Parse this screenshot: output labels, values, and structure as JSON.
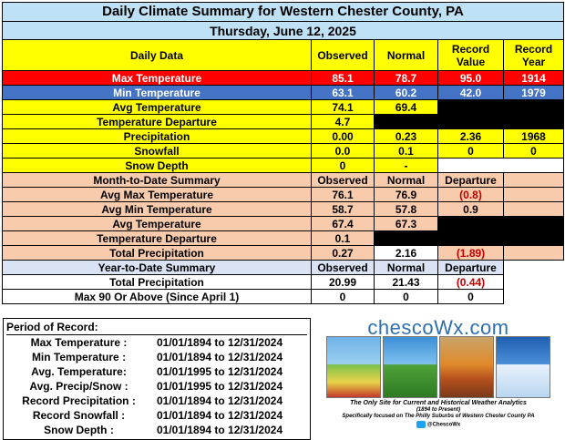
{
  "title": "Daily Climate Summary for Western Chester County, PA",
  "date": "Thursday, June 12, 2025",
  "daily": {
    "headers": [
      "Daily Data",
      "Observed",
      "Normal",
      "Record Value",
      "Record Year"
    ],
    "rows": [
      {
        "label": "Max Temperature",
        "observed": "85.1",
        "normal": "78.7",
        "record_value": "95.0",
        "record_year": "1914"
      },
      {
        "label": "Min Temperature",
        "observed": "63.1",
        "normal": "60.2",
        "record_value": "42.0",
        "record_year": "1979"
      },
      {
        "label": "Avg Temperature",
        "observed": "74.1",
        "normal": "69.4",
        "record_value": "",
        "record_year": ""
      },
      {
        "label": "Temperature Departure",
        "observed": "4.7",
        "normal": "",
        "record_value": "",
        "record_year": ""
      },
      {
        "label": "Precipitation",
        "observed": "0.00",
        "normal": "0.23",
        "record_value": "2.36",
        "record_year": "1968"
      },
      {
        "label": "Snowfall",
        "observed": "0.0",
        "normal": "0.1",
        "record_value": "0",
        "record_year": "0"
      },
      {
        "label": "Snow Depth",
        "observed": "0",
        "normal": "-",
        "record_value": "",
        "record_year": ""
      }
    ]
  },
  "month_to_date": {
    "headers": [
      "Month-to-Date Summary",
      "Observed",
      "Normal",
      "Departure"
    ],
    "rows": [
      {
        "label": "Avg Max Temperature",
        "observed": "76.1",
        "normal": "76.9",
        "departure": "(0.8)"
      },
      {
        "label": "Avg Min Temperature",
        "observed": "58.7",
        "normal": "57.8",
        "departure": "0.9"
      },
      {
        "label": "Avg Temperature",
        "observed": "67.4",
        "normal": "67.3",
        "departure": ""
      },
      {
        "label": "Temperature Departure",
        "observed": "0.1",
        "normal": "",
        "departure": ""
      },
      {
        "label": "Total Precipitation",
        "observed": "0.27",
        "normal": "2.16",
        "departure": "(1.89)"
      }
    ]
  },
  "year_to_date": {
    "headers": [
      "Year-to-Date Summary",
      "Observed",
      "Normal",
      "Departure"
    ],
    "rows": [
      {
        "label": "Total Precipitation",
        "observed": "20.99",
        "normal": "21.43",
        "departure": "(0.44)"
      },
      {
        "label": "Max 90 Or Above (Since April 1)",
        "observed": "0",
        "normal": "0",
        "departure": "0"
      }
    ]
  },
  "period_of_record": {
    "heading": "Period of Record:",
    "rows": [
      {
        "label": "Max Temperature :",
        "range": "01/01/1894 to 12/31/2024"
      },
      {
        "label": "Min Temperature :",
        "range": "01/01/1894 to 12/31/2024"
      },
      {
        "label": "Avg. Temperature:",
        "range": "01/01/1995 to 12/31/2024"
      },
      {
        "label": "Avg. Precip/Snow :",
        "range": "01/01/1995 to 12/31/2024"
      },
      {
        "label": "Record Precipitation :",
        "range": "01/01/1894 to 12/31/2024"
      },
      {
        "label": "Record Snowfall :",
        "range": "01/01/1894 to 12/31/2024"
      },
      {
        "label": "Snow Depth :",
        "range": "01/01/1894 to 12/31/2024"
      }
    ]
  },
  "logo": {
    "brand": "chescoWx.com",
    "tagline1": "The Only Site for Current and Historical Weather Analytics",
    "tagline2": "(1894 to Present)",
    "tagline3": "Specifically focused on The Philly Suburbs of Western Chester County PA",
    "handle": "@ChescoWx"
  },
  "colors": {
    "header_blue": "#bfe1f5",
    "highlight_yellow": "#ffff00",
    "max_temp_red": "#ff0000",
    "min_temp_blue": "#4472c4",
    "salmon": "#f8cbad",
    "ytd_blue": "#dae3f3",
    "negative_text": "#c00000"
  }
}
